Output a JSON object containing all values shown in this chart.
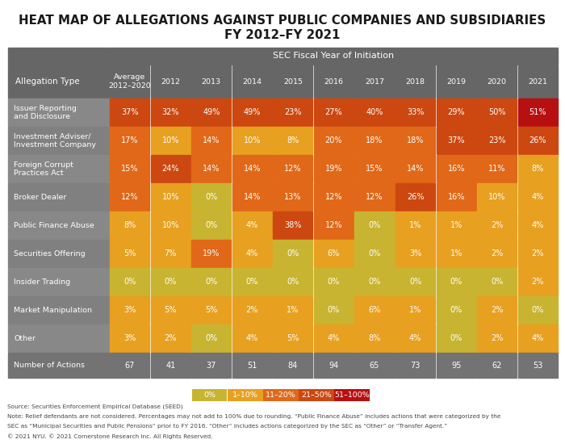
{
  "title_line1": "HEAT MAP OF ALLEGATIONS AGAINST PUBLIC COMPANIES AND SUBSIDIARIES",
  "title_line2": "FY 2012–FY 2021",
  "col_header_top": "SEC Fiscal Year of Initiation",
  "col_headers": [
    "Average\n2012–2020",
    "2012",
    "2013",
    "2014",
    "2015",
    "2016",
    "2017",
    "2018",
    "2019",
    "2020",
    "2021"
  ],
  "row_labels": [
    "Issuer Reporting\nand Disclosure",
    "Investment Adviser/\nInvestment Company",
    "Foreign Corrupt\nPractices Act",
    "Broker Dealer",
    "Public Finance Abuse",
    "Securities Offering",
    "Insider Trading",
    "Market Manipulation",
    "Other",
    "Number of Actions"
  ],
  "values": [
    [
      37,
      32,
      49,
      49,
      23,
      27,
      40,
      33,
      29,
      50,
      51
    ],
    [
      17,
      10,
      14,
      10,
      8,
      20,
      18,
      18,
      37,
      23,
      26
    ],
    [
      15,
      24,
      14,
      14,
      12,
      19,
      15,
      14,
      16,
      11,
      8
    ],
    [
      12,
      10,
      0,
      14,
      13,
      12,
      12,
      26,
      16,
      10,
      4
    ],
    [
      8,
      10,
      0,
      4,
      38,
      12,
      0,
      1,
      1,
      2,
      4
    ],
    [
      5,
      7,
      19,
      4,
      0,
      6,
      0,
      3,
      1,
      2,
      2
    ],
    [
      0,
      0,
      0,
      0,
      0,
      0,
      0,
      0,
      0,
      0,
      2
    ],
    [
      3,
      5,
      5,
      2,
      1,
      0,
      6,
      1,
      0,
      2,
      0
    ],
    [
      3,
      2,
      0,
      4,
      5,
      4,
      8,
      4,
      0,
      2,
      4
    ],
    [
      67,
      41,
      37,
      51,
      84,
      94,
      65,
      73,
      95,
      62,
      53
    ]
  ],
  "color_0": "#c8b430",
  "color_1_10": "#e8a020",
  "color_11_20": "#e06818",
  "color_21_50": "#cc4810",
  "color_51_100": "#b81010",
  "color_header_dark": "#666666",
  "color_row_odd": "#888888",
  "color_row_even": "#808080",
  "color_number_bg": "#737373",
  "color_bg": "#ffffff",
  "source_line1": "Source: Securities Enforcement Empirical Database (SEED)",
  "source_line2": "Note: Relief defendants are not considered. Percentages may not add to 100% due to rounding. “Public Finance Abuse” includes actions that were categorized by the",
  "source_line3": "SEC as “Municipal Securities and Public Pensions” prior to FY 2016. “Other” includes actions categorized by the SEC as “Other” or “Transfer Agent.”",
  "source_line4": "© 2021 NYU. © 2021 Cornerstone Research Inc. All Rights Reserved.",
  "legend_labels": [
    "0%",
    "1–10%",
    "11–20%",
    "21–50%",
    "51–100%"
  ],
  "legend_colors": [
    "#c8b430",
    "#e8a020",
    "#e06818",
    "#cc4810",
    "#b81010"
  ]
}
